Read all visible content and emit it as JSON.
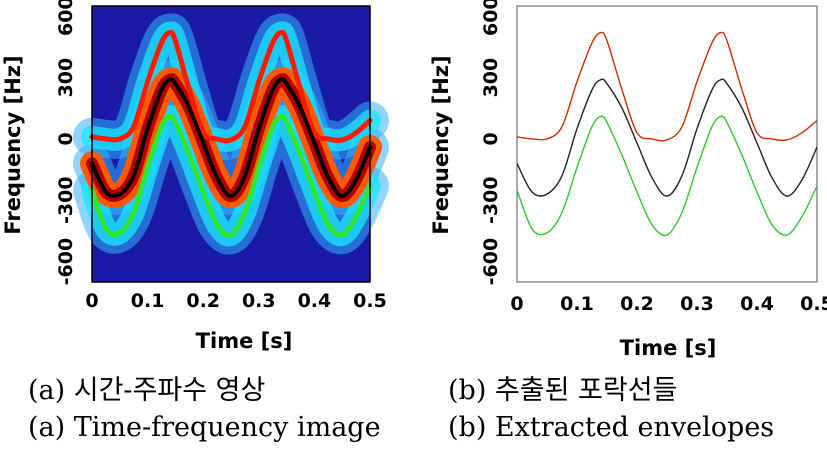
{
  "chart_data": [
    {
      "type": "heatmap",
      "xlabel": "Time [s]",
      "ylabel": "Frequency [Hz]",
      "xlim": [
        0,
        0.5
      ],
      "ylim": [
        -700,
        650
      ],
      "xticks": [
        "0",
        "0.1",
        "0.2",
        "0.3",
        "0.4",
        "0.5"
      ],
      "yticks": [
        "600",
        "300",
        "0",
        "-300",
        "-600"
      ],
      "x": [
        0,
        0.025,
        0.05,
        0.075,
        0.1,
        0.125,
        0.14,
        0.15,
        0.175,
        0.2,
        0.225,
        0.25,
        0.275,
        0.3,
        0.325,
        0.34,
        0.35,
        0.375,
        0.4,
        0.425,
        0.45,
        0.475,
        0.5
      ],
      "series": [
        {
          "color": "#ff1a00",
          "values": [
            10,
            0,
            0,
            60,
            280,
            470,
            520,
            480,
            240,
            30,
            0,
            -5,
            60,
            280,
            470,
            520,
            480,
            240,
            30,
            0,
            -5,
            30,
            90
          ]
        },
        {
          "color": "#000000",
          "values": [
            -120,
            -260,
            -270,
            -180,
            50,
            240,
            290,
            270,
            150,
            -20,
            -190,
            -280,
            -180,
            50,
            240,
            290,
            270,
            150,
            -20,
            -190,
            -280,
            -200,
            -40
          ]
        },
        {
          "color": "#2ee82e",
          "values": [
            -250,
            -440,
            -460,
            -360,
            -140,
            60,
            110,
            80,
            -80,
            -260,
            -420,
            -470,
            -360,
            -140,
            60,
            110,
            80,
            -80,
            -260,
            -420,
            -470,
            -380,
            -230
          ]
        }
      ],
      "colors": {
        "background": "#1a1aa6",
        "halo_outer": "#33b3ff",
        "halo_inner": "#19e8ff",
        "band": "#ff5a00"
      }
    },
    {
      "type": "line",
      "xlabel": "Time [s]",
      "ylabel": "Frequency [Hz]",
      "xlim": [
        0,
        0.5
      ],
      "ylim": [
        -700,
        650
      ],
      "xticks": [
        "0",
        "0.1",
        "0.2",
        "0.3",
        "0.4",
        "0.5"
      ],
      "yticks": [
        "600",
        "300",
        "0",
        "-300",
        "-600"
      ],
      "x": [
        0,
        0.025,
        0.05,
        0.075,
        0.1,
        0.125,
        0.14,
        0.15,
        0.175,
        0.2,
        0.225,
        0.25,
        0.275,
        0.3,
        0.325,
        0.34,
        0.35,
        0.375,
        0.4,
        0.425,
        0.45,
        0.475,
        0.5
      ],
      "series": [
        {
          "color": "#d42a00",
          "values": [
            10,
            0,
            0,
            60,
            280,
            470,
            520,
            480,
            240,
            30,
            0,
            -5,
            60,
            280,
            470,
            520,
            480,
            240,
            30,
            0,
            -5,
            30,
            90
          ]
        },
        {
          "color": "#222222",
          "values": [
            -120,
            -260,
            -270,
            -180,
            50,
            240,
            290,
            270,
            150,
            -20,
            -190,
            -280,
            -180,
            50,
            240,
            290,
            270,
            150,
            -20,
            -190,
            -280,
            -200,
            -40
          ]
        },
        {
          "color": "#2ec82e",
          "values": [
            -250,
            -440,
            -460,
            -360,
            -140,
            60,
            110,
            80,
            -80,
            -260,
            -420,
            -470,
            -360,
            -140,
            60,
            110,
            80,
            -80,
            -260,
            -420,
            -470,
            -380,
            -230
          ]
        }
      ]
    }
  ],
  "captions": {
    "a_ko": "(a) 시간-주파수 영상",
    "a_en": "(a) Time-frequency image",
    "b_ko": "(b) 추출된 포락선들",
    "b_en": "(b) Extracted envelopes"
  }
}
